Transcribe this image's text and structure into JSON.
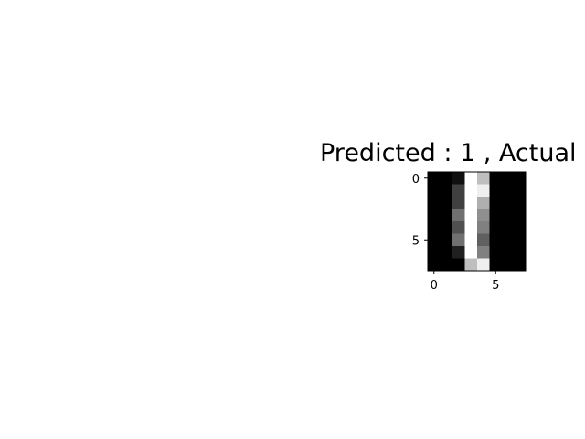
{
  "chart_data": {
    "type": "heatmap",
    "title": "Predicted : 1 , Actual",
    "colormap": "gray",
    "rows": 8,
    "cols": 8,
    "vmin": 0,
    "vmax": 16,
    "values": [
      [
        0,
        0,
        1,
        16,
        12,
        0,
        0,
        0
      ],
      [
        0,
        0,
        4,
        16,
        15,
        0,
        0,
        0
      ],
      [
        0,
        0,
        4,
        16,
        11,
        0,
        0,
        0
      ],
      [
        0,
        0,
        7,
        16,
        9,
        0,
        0,
        0
      ],
      [
        0,
        0,
        5,
        16,
        8,
        0,
        0,
        0
      ],
      [
        0,
        0,
        7,
        16,
        6,
        0,
        0,
        0
      ],
      [
        0,
        0,
        2,
        16,
        8,
        0,
        0,
        0
      ],
      [
        0,
        0,
        0,
        12,
        15,
        0,
        0,
        0
      ]
    ],
    "xticks": [
      0,
      5
    ],
    "yticks": [
      0,
      5
    ],
    "xlim": [
      -0.5,
      7.5
    ],
    "ylim": [
      7.5,
      -0.5
    ],
    "grid": false
  }
}
